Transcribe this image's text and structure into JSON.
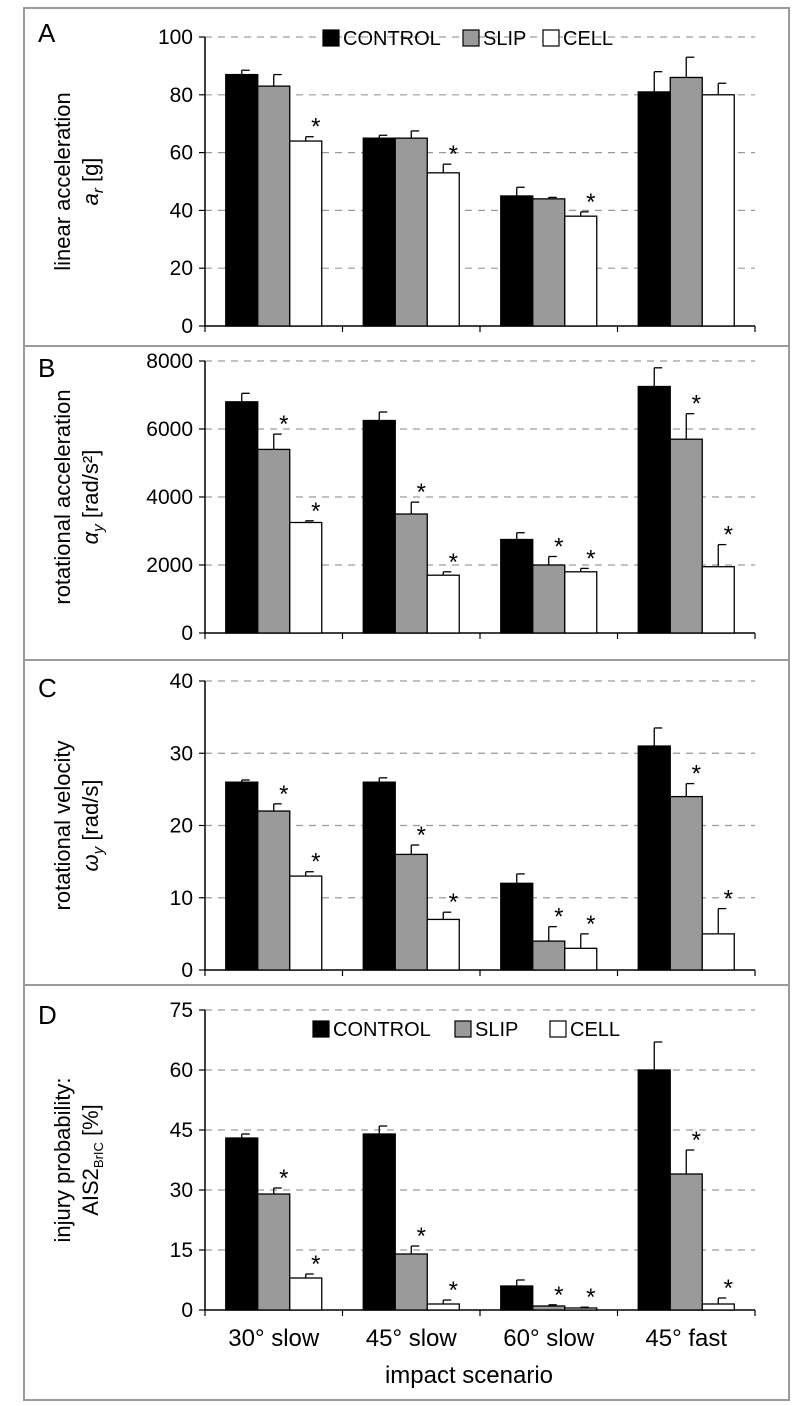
{
  "x_axis_label": "impact scenario",
  "legend": [
    "CONTROL",
    "SLIP",
    "CELL"
  ],
  "colors": {
    "CONTROL": "#000000",
    "SLIP": "#9a9a9a",
    "CELL": "#ffffff",
    "frame": "#9a9a9a",
    "grid": "#9a9a9a"
  },
  "chart_data": [
    {
      "type": "bar",
      "panel_letter": "A",
      "ylabel_line1": "linear acceleration",
      "ylabel_symbol": "a",
      "ylabel_sub": "r",
      "ylabel_unit": "[g]",
      "ylim": [
        0,
        100
      ],
      "yticks": [
        "0",
        "20",
        "40",
        "60",
        "80",
        "100"
      ],
      "grid": true,
      "legend": "top",
      "categories": [
        "30° slow",
        "45° slow",
        "60° slow",
        "45° fast"
      ],
      "series": [
        {
          "name": "CONTROL",
          "values": [
            87,
            65,
            45,
            81
          ],
          "errors": [
            1.5,
            1,
            3,
            7
          ],
          "significant": [
            false,
            false,
            false,
            false
          ]
        },
        {
          "name": "SLIP",
          "values": [
            83,
            65,
            44,
            86
          ],
          "errors": [
            4,
            2.5,
            0.5,
            7
          ],
          "significant": [
            false,
            false,
            false,
            false
          ]
        },
        {
          "name": "CELL",
          "values": [
            64,
            53,
            38,
            80
          ],
          "errors": [
            1.5,
            3,
            1.5,
            4
          ],
          "significant": [
            true,
            true,
            true,
            false
          ]
        }
      ]
    },
    {
      "type": "bar",
      "panel_letter": "B",
      "ylabel_line1": "rotational acceleration",
      "ylabel_symbol": "α",
      "ylabel_sub": "y",
      "ylabel_unit": "[rad/s²]",
      "ylim": [
        0,
        8000
      ],
      "yticks": [
        "0",
        "2000",
        "4000",
        "6000",
        "8000"
      ],
      "grid": true,
      "categories": [
        "30° slow",
        "45° slow",
        "60° slow",
        "45° fast"
      ],
      "series": [
        {
          "name": "CONTROL",
          "values": [
            6800,
            6250,
            2750,
            7250
          ],
          "errors": [
            250,
            250,
            200,
            550
          ],
          "significant": [
            false,
            false,
            false,
            false
          ]
        },
        {
          "name": "SLIP",
          "values": [
            5400,
            3500,
            2000,
            5700
          ],
          "errors": [
            450,
            350,
            250,
            750
          ],
          "significant": [
            true,
            true,
            true,
            true
          ]
        },
        {
          "name": "CELL",
          "values": [
            3250,
            1700,
            1800,
            1950
          ],
          "errors": [
            50,
            100,
            100,
            650
          ],
          "significant": [
            true,
            true,
            true,
            true
          ]
        }
      ]
    },
    {
      "type": "bar",
      "panel_letter": "C",
      "ylabel_line1": "rotational velocity",
      "ylabel_symbol": "ω",
      "ylabel_sub": "y",
      "ylabel_unit": "[rad/s]",
      "ylim": [
        0,
        40
      ],
      "yticks": [
        "0",
        "10",
        "20",
        "30",
        "40"
      ],
      "grid": true,
      "categories": [
        "30° slow",
        "45° slow",
        "60° slow",
        "45° fast"
      ],
      "series": [
        {
          "name": "CONTROL",
          "values": [
            26,
            26,
            12,
            31
          ],
          "errors": [
            0.3,
            0.6,
            1.3,
            2.5
          ],
          "significant": [
            false,
            false,
            false,
            false
          ]
        },
        {
          "name": "SLIP",
          "values": [
            22,
            16,
            4,
            24
          ],
          "errors": [
            1,
            1.3,
            2,
            1.8
          ],
          "significant": [
            true,
            true,
            true,
            true
          ]
        },
        {
          "name": "CELL",
          "values": [
            13,
            7,
            3,
            5
          ],
          "errors": [
            0.6,
            1,
            2,
            3.5
          ],
          "significant": [
            true,
            true,
            true,
            true
          ]
        }
      ]
    },
    {
      "type": "bar",
      "panel_letter": "D",
      "ylabel_line1": "injury probability:",
      "ylabel_symbol": "AIS2",
      "ylabel_sub": "BrIC",
      "ylabel_unit": "[%]",
      "ylim": [
        0,
        75
      ],
      "yticks": [
        "0",
        "15",
        "30",
        "45",
        "60",
        "75"
      ],
      "grid": true,
      "legend": "top",
      "categories": [
        "30° slow",
        "45° slow",
        "60° slow",
        "45° fast"
      ],
      "series": [
        {
          "name": "CONTROL",
          "values": [
            43,
            44,
            6,
            60
          ],
          "errors": [
            1,
            2,
            1.5,
            7
          ],
          "significant": [
            false,
            false,
            false,
            false
          ]
        },
        {
          "name": "SLIP",
          "values": [
            29,
            14,
            1,
            34
          ],
          "errors": [
            1.5,
            2,
            0.3,
            6
          ],
          "significant": [
            true,
            true,
            true,
            true
          ]
        },
        {
          "name": "CELL",
          "values": [
            8,
            1.5,
            0.5,
            1.5
          ],
          "errors": [
            1,
            1,
            0.2,
            1.5
          ],
          "significant": [
            true,
            true,
            true,
            true
          ]
        }
      ]
    }
  ]
}
